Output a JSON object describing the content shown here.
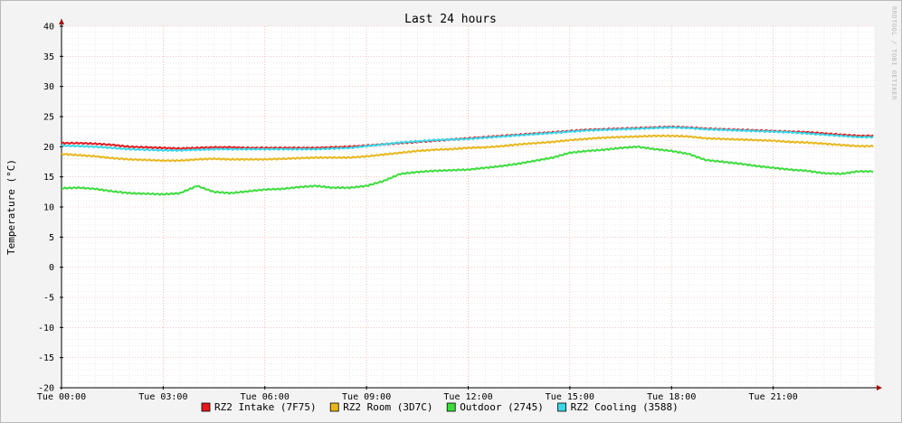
{
  "chart_data": {
    "type": "line",
    "title": "Last 24 hours",
    "ylabel": "Temperature (°C)",
    "watermark": "RRDTOOL / TOBI OETIKER",
    "ylim": [
      -20,
      40
    ],
    "xlim": [
      0,
      24
    ],
    "y_ticks": [
      -20,
      -15,
      -10,
      -5,
      0,
      5,
      10,
      15,
      20,
      25,
      30,
      35,
      40
    ],
    "x_ticks": [
      {
        "x": 0,
        "label": "Tue 00:00"
      },
      {
        "x": 3,
        "label": "Tue 03:00"
      },
      {
        "x": 6,
        "label": "Tue 06:00"
      },
      {
        "x": 9,
        "label": "Tue 09:00"
      },
      {
        "x": 12,
        "label": "Tue 12:00"
      },
      {
        "x": 15,
        "label": "Tue 15:00"
      },
      {
        "x": 18,
        "label": "Tue 18:00"
      },
      {
        "x": 21,
        "label": "Tue 21:00"
      }
    ],
    "grid": true,
    "legend_position": "bottom",
    "x": [
      0,
      0.5,
      1,
      1.5,
      2,
      2.5,
      3,
      3.5,
      4,
      4.5,
      5,
      5.5,
      6,
      6.5,
      7,
      7.5,
      8,
      8.5,
      9,
      9.5,
      10,
      10.5,
      11,
      11.5,
      12,
      12.5,
      13,
      13.5,
      14,
      14.5,
      15,
      15.5,
      16,
      16.5,
      17,
      17.5,
      18,
      18.5,
      19,
      19.5,
      20,
      20.5,
      21,
      21.5,
      22,
      22.5,
      23,
      23.5
    ],
    "series": [
      {
        "name": "RZ2 Intake (7F75)",
        "color": "#e8191c",
        "values": [
          20.6,
          20.6,
          20.5,
          20.3,
          20.0,
          19.9,
          19.8,
          19.7,
          19.8,
          19.9,
          19.9,
          19.8,
          19.8,
          19.8,
          19.8,
          19.8,
          19.9,
          20.0,
          20.2,
          20.4,
          20.6,
          20.8,
          21.0,
          21.2,
          21.4,
          21.6,
          21.8,
          22.0,
          22.2,
          22.4,
          22.6,
          22.8,
          22.9,
          23.0,
          23.1,
          23.2,
          23.3,
          23.2,
          23.0,
          22.9,
          22.8,
          22.7,
          22.6,
          22.5,
          22.4,
          22.2,
          22.0,
          21.8
        ]
      },
      {
        "name": "RZ2 Room (3D7C)",
        "color": "#e8b71c",
        "values": [
          18.8,
          18.6,
          18.4,
          18.1,
          17.9,
          17.8,
          17.7,
          17.7,
          17.9,
          18.0,
          17.9,
          17.9,
          17.9,
          18.0,
          18.1,
          18.2,
          18.2,
          18.2,
          18.4,
          18.7,
          19.0,
          19.3,
          19.5,
          19.6,
          19.8,
          19.9,
          20.1,
          20.4,
          20.6,
          20.8,
          21.1,
          21.3,
          21.5,
          21.6,
          21.7,
          21.8,
          21.8,
          21.7,
          21.4,
          21.3,
          21.2,
          21.1,
          21.0,
          20.8,
          20.7,
          20.5,
          20.3,
          20.1
        ]
      },
      {
        "name": "Outdoor (2745)",
        "color": "#3ddc3d",
        "values": [
          13.1,
          13.2,
          13.0,
          12.6,
          12.3,
          12.2,
          12.1,
          12.3,
          13.5,
          12.5,
          12.3,
          12.6,
          12.9,
          13.0,
          13.3,
          13.5,
          13.2,
          13.2,
          13.5,
          14.3,
          15.5,
          15.8,
          16.0,
          16.1,
          16.2,
          16.5,
          16.8,
          17.2,
          17.7,
          18.2,
          19.0,
          19.3,
          19.5,
          19.8,
          20.0,
          19.6,
          19.3,
          18.8,
          17.8,
          17.5,
          17.2,
          16.8,
          16.5,
          16.2,
          16.0,
          15.6,
          15.5,
          15.9
        ]
      },
      {
        "name": "RZ2 Cooling (3588)",
        "color": "#3ad7e9",
        "values": [
          20.2,
          20.1,
          20.0,
          19.8,
          19.6,
          19.5,
          19.4,
          19.4,
          19.5,
          19.6,
          19.6,
          19.6,
          19.6,
          19.6,
          19.6,
          19.6,
          19.7,
          19.8,
          20.1,
          20.4,
          20.7,
          20.9,
          21.1,
          21.2,
          21.3,
          21.5,
          21.7,
          21.9,
          22.1,
          22.3,
          22.5,
          22.7,
          22.8,
          22.9,
          23.0,
          23.1,
          23.2,
          23.1,
          22.9,
          22.8,
          22.7,
          22.6,
          22.5,
          22.4,
          22.2,
          22.0,
          21.8,
          21.6
        ]
      }
    ]
  }
}
